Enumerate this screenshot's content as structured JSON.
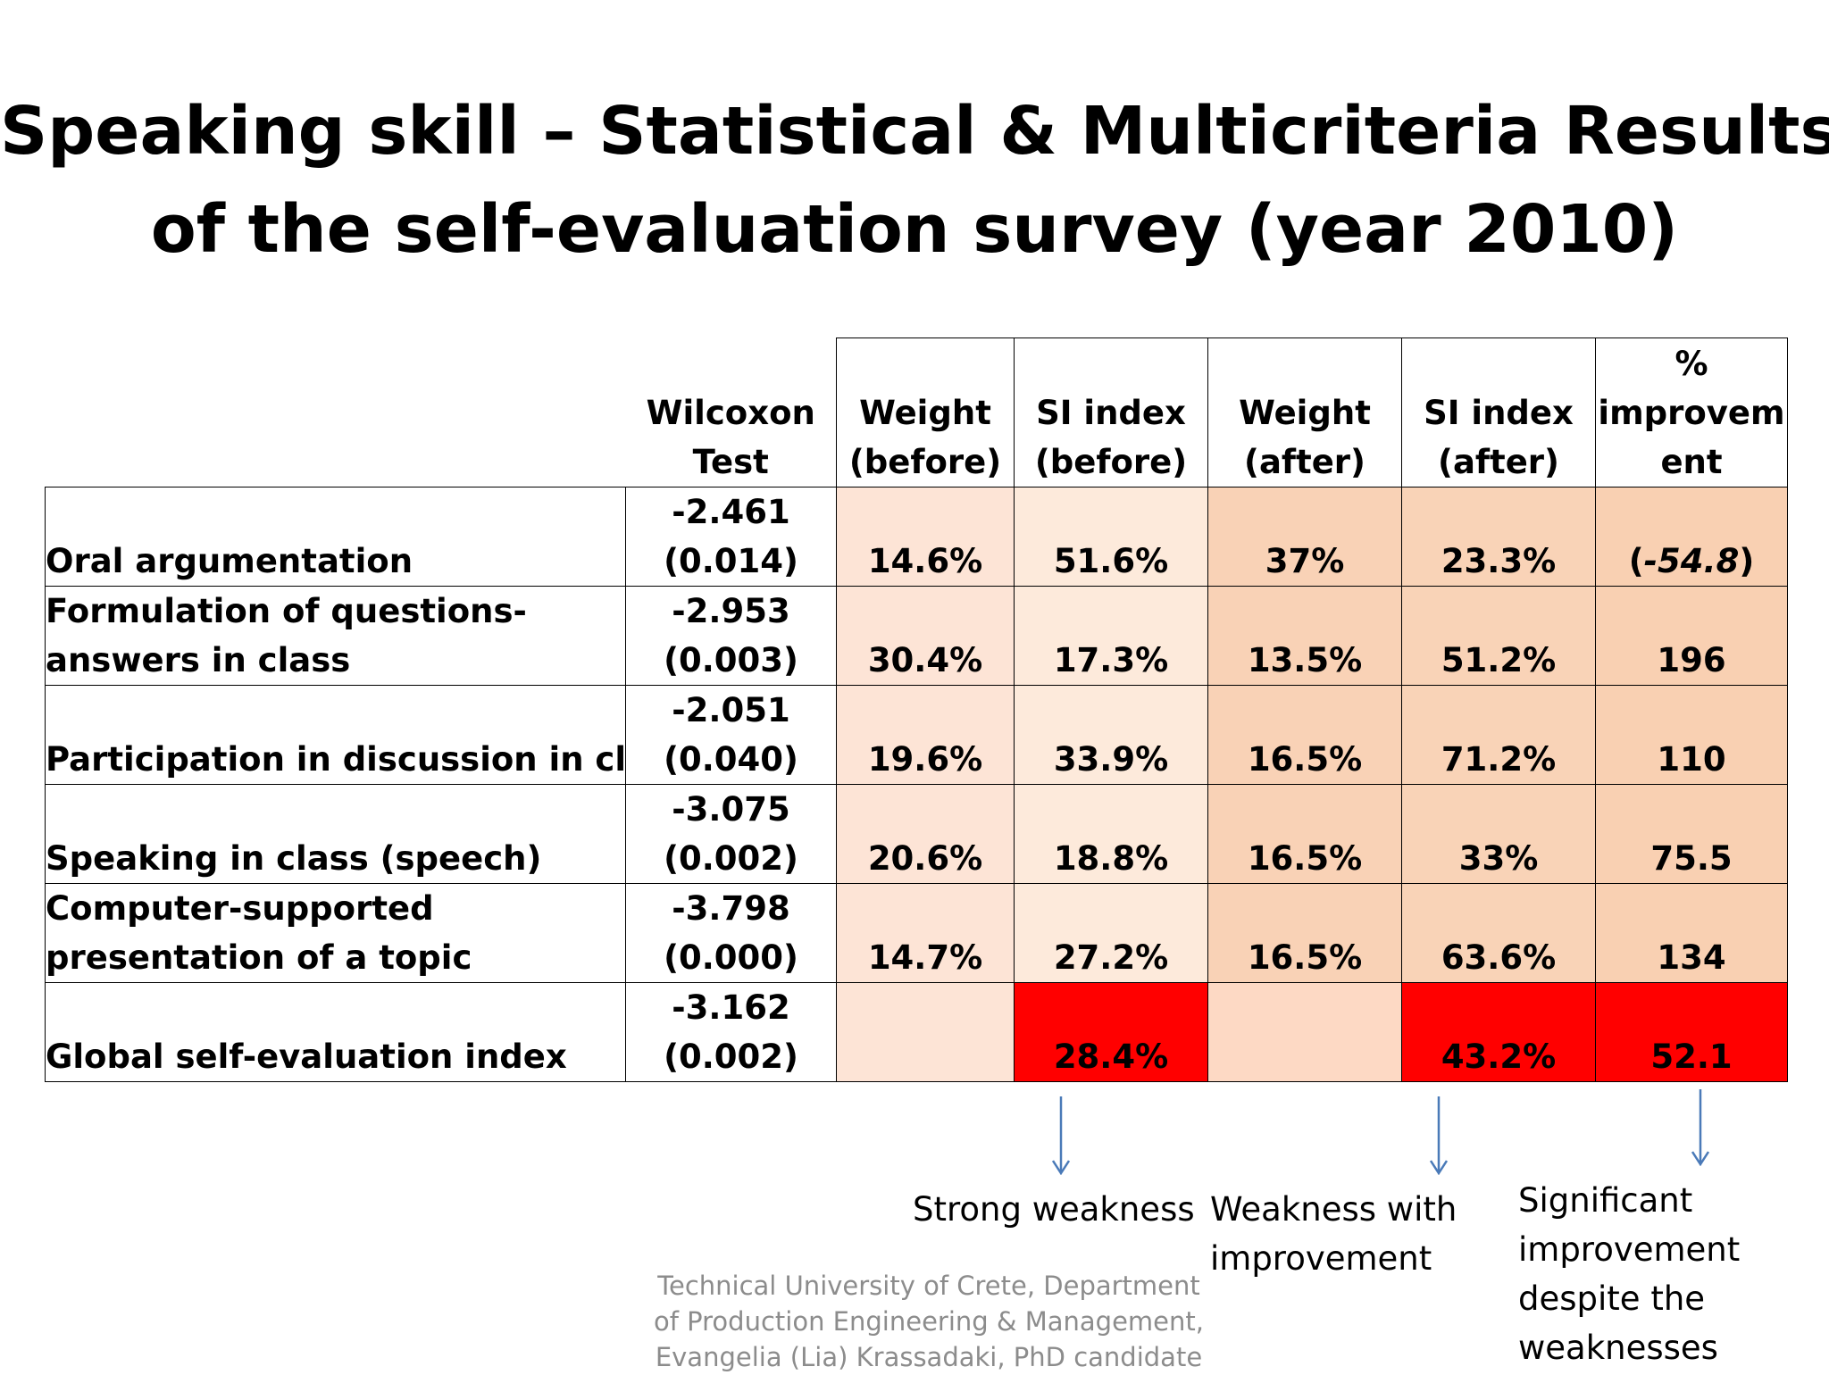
{
  "title": {
    "line1": "Speaking skill – Statistical & Multicriteria Results",
    "line2": "of the self-evaluation survey (year 2010)"
  },
  "table": {
    "headers": {
      "wilcoxon": [
        "Wilcoxon",
        "Test"
      ],
      "weight_before": [
        "Weight",
        "(before)"
      ],
      "si_before": [
        "SI index",
        "(before)"
      ],
      "weight_after": [
        "Weight",
        "(after)"
      ],
      "si_after": [
        "SI index",
        "(after)"
      ],
      "improvement": [
        "%",
        "improvem",
        "ent"
      ]
    },
    "rows": [
      {
        "criterion": [
          "Oral argumentation"
        ],
        "wilcoxon": "-2.461",
        "p": "(0.014)",
        "weight_before": "14.6%",
        "si_before": "51.6%",
        "weight_after": "37%",
        "si_after": "23.3%",
        "improvement_open": "(",
        "improvement": "-54.8",
        "improvement_close": ")"
      },
      {
        "criterion": [
          "Formulation of questions-",
          "answers in class"
        ],
        "wilcoxon": "-2.953",
        "p": "(0.003)",
        "weight_before": "30.4%",
        "si_before": "17.3%",
        "weight_after": "13.5%",
        "si_after": "51.2%",
        "improvement": "196"
      },
      {
        "criterion": [
          "Participation in discussion in class"
        ],
        "wilcoxon": "-2.051",
        "p": "(0.040)",
        "weight_before": "19.6%",
        "si_before": "33.9%",
        "weight_after": "16.5%",
        "si_after": "71.2%",
        "improvement": "110"
      },
      {
        "criterion": [
          "Speaking in class (speech)"
        ],
        "wilcoxon": "-3.075",
        "p": "(0.002)",
        "weight_before": "20.6%",
        "si_before": "18.8%",
        "weight_after": "16.5%",
        "si_after": "33%",
        "improvement": "75.5"
      },
      {
        "criterion": [
          "Computer-supported",
          "presentation of a topic"
        ],
        "wilcoxon": "-3.798",
        "p": "(0.000)",
        "weight_before": "14.7%",
        "si_before": "27.2%",
        "weight_after": "16.5%",
        "si_after": "63.6%",
        "improvement": "134"
      },
      {
        "criterion": [
          "Global self-evaluation index"
        ],
        "wilcoxon": "-3.162",
        "p": "(0.002)",
        "weight_before": "",
        "si_before": "28.4%",
        "weight_after": "",
        "si_after": "43.2%",
        "improvement": "52.1"
      }
    ]
  },
  "annotations": {
    "strong_weakness": [
      "Strong weakness"
    ],
    "weakness_improvement": [
      "Weakness with",
      "improvement"
    ],
    "significant_improvement": [
      "Significant",
      "improvement",
      "despite the",
      "weaknesses"
    ]
  },
  "footer": [
    "Technical University of Crete, Department",
    "of Production Engineering & Management,",
    "Evangelia (Lia) Krassadaki, PhD candidate"
  ],
  "colors": {
    "highlight_red": "#ff0000",
    "cell_peach_light": "#fde4d6",
    "cell_peach": "#f9d2b6",
    "arrow_blue": "#4a7ab8",
    "footer_gray": "#8c8c8c"
  }
}
